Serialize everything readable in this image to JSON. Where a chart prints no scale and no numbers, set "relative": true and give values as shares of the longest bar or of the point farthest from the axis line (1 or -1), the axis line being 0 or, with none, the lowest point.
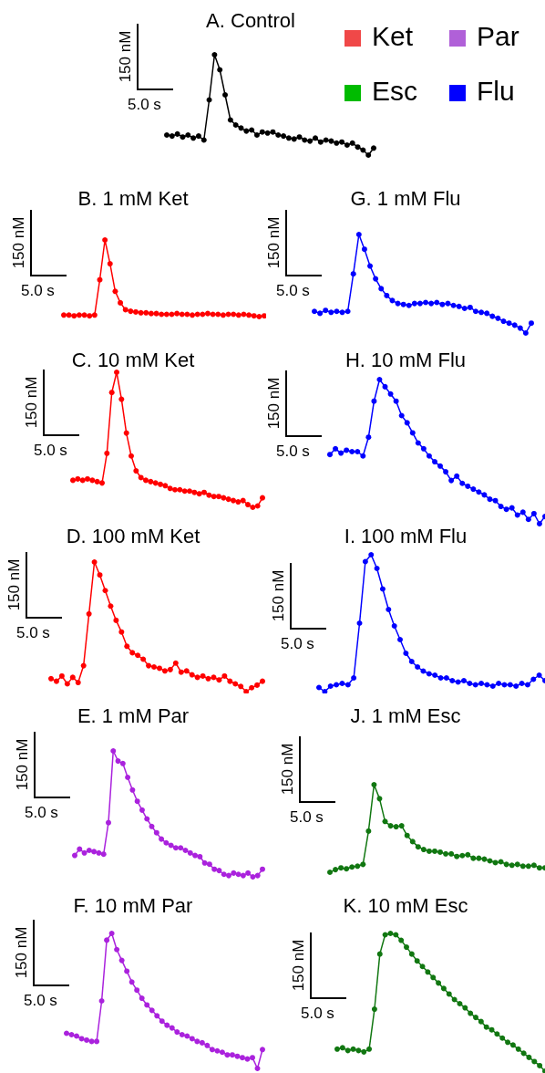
{
  "chart_data": [
    {
      "type": "line",
      "title": "A. Control",
      "relative": true,
      "marker": "circle",
      "annotations": [
        "150 nM",
        "5.0 s"
      ],
      "categories": [
        null,
        null,
        null,
        null,
        null,
        null,
        null,
        null,
        null,
        null,
        null,
        null,
        null,
        null,
        null,
        null,
        null,
        null,
        null,
        null,
        null,
        null,
        null,
        null,
        null,
        null,
        null,
        null,
        null,
        null,
        null,
        null,
        null,
        null,
        null,
        null,
        null,
        null,
        null,
        null
      ],
      "series": [
        {
          "color": "#000000",
          "values": [
            0.2,
            0.19,
            0.21,
            0.18,
            0.2,
            0.17,
            0.19,
            0.15,
            0.55,
            1.0,
            0.85,
            0.6,
            0.35,
            0.3,
            0.27,
            0.24,
            0.25,
            0.2,
            0.23,
            0.22,
            0.23,
            0.2,
            0.19,
            0.17,
            0.16,
            0.18,
            0.15,
            0.14,
            0.17,
            0.13,
            0.15,
            0.14,
            0.12,
            0.13,
            0.1,
            0.12,
            0.08,
            0.05,
            0.0,
            0.07
          ]
        }
      ]
    },
    {
      "type": "other",
      "categories": [
        "Ket",
        "Par",
        "Esc",
        "Flu"
      ],
      "colors": [
        "#f04848",
        "#b060d8",
        "#00bb00",
        "#0000ff"
      ]
    },
    {
      "type": "line",
      "title": "B. 1 mM Ket",
      "relative": true,
      "marker": "circle",
      "annotations": [
        "150 nM",
        "5.0 s"
      ],
      "categories": [
        null,
        null,
        null,
        null,
        null,
        null,
        null,
        null,
        null,
        null,
        null,
        null,
        null,
        null,
        null,
        null,
        null,
        null,
        null,
        null,
        null,
        null,
        null,
        null,
        null,
        null,
        null,
        null,
        null,
        null,
        null,
        null,
        null,
        null,
        null,
        null,
        null,
        null,
        null,
        null
      ],
      "series": [
        {
          "color": "#ff0000",
          "values": [
            0.02,
            0.02,
            0.01,
            0.02,
            0.02,
            0.01,
            0.02,
            0.48,
            1.0,
            0.69,
            0.33,
            0.18,
            0.09,
            0.07,
            0.06,
            0.05,
            0.05,
            0.04,
            0.04,
            0.03,
            0.03,
            0.03,
            0.04,
            0.03,
            0.03,
            0.02,
            0.03,
            0.03,
            0.04,
            0.03,
            0.03,
            0.02,
            0.03,
            0.03,
            0.02,
            0.03,
            0.02,
            0.01,
            0.0,
            0.01
          ]
        }
      ]
    },
    {
      "type": "line",
      "title": "G. 1 mM Flu",
      "relative": true,
      "marker": "circle",
      "annotations": [
        "150 nM",
        "5.0 s"
      ],
      "categories": [
        null,
        null,
        null,
        null,
        null,
        null,
        null,
        null,
        null,
        null,
        null,
        null,
        null,
        null,
        null,
        null,
        null,
        null,
        null,
        null,
        null,
        null,
        null,
        null,
        null,
        null,
        null,
        null,
        null,
        null,
        null,
        null,
        null,
        null,
        null,
        null,
        null,
        null,
        null,
        null
      ],
      "series": [
        {
          "color": "#0000ff",
          "values": [
            0.22,
            0.2,
            0.23,
            0.21,
            0.22,
            0.21,
            0.22,
            0.6,
            1.0,
            0.85,
            0.68,
            0.55,
            0.45,
            0.38,
            0.33,
            0.3,
            0.29,
            0.28,
            0.3,
            0.3,
            0.31,
            0.3,
            0.31,
            0.29,
            0.3,
            0.28,
            0.27,
            0.25,
            0.26,
            0.22,
            0.21,
            0.2,
            0.17,
            0.15,
            0.12,
            0.1,
            0.08,
            0.05,
            0.0,
            0.1
          ]
        }
      ]
    },
    {
      "type": "line",
      "title": "C. 10 mM Ket",
      "relative": true,
      "marker": "circle",
      "annotations": [
        "150 nM",
        "5.0 s"
      ],
      "categories": [
        null,
        null,
        null,
        null,
        null,
        null,
        null,
        null,
        null,
        null,
        null,
        null,
        null,
        null,
        null,
        null,
        null,
        null,
        null,
        null,
        null,
        null,
        null,
        null,
        null,
        null,
        null,
        null,
        null,
        null,
        null,
        null,
        null,
        null,
        null,
        null,
        null,
        null,
        null,
        null
      ],
      "series": [
        {
          "color": "#ff0000",
          "values": [
            0.2,
            0.21,
            0.2,
            0.21,
            0.2,
            0.19,
            0.18,
            0.4,
            0.85,
            1.0,
            0.8,
            0.55,
            0.38,
            0.27,
            0.22,
            0.2,
            0.19,
            0.18,
            0.17,
            0.16,
            0.14,
            0.13,
            0.13,
            0.12,
            0.12,
            0.11,
            0.1,
            0.11,
            0.09,
            0.08,
            0.08,
            0.07,
            0.06,
            0.05,
            0.04,
            0.05,
            0.02,
            0.0,
            0.01,
            0.07
          ]
        }
      ]
    },
    {
      "type": "line",
      "title": "H. 10 mM Flu",
      "relative": true,
      "marker": "circle",
      "annotations": [
        "150 nM",
        "5.0 s"
      ],
      "categories": [
        null,
        null,
        null,
        null,
        null,
        null,
        null,
        null,
        null,
        null,
        null,
        null,
        null,
        null,
        null,
        null,
        null,
        null,
        null,
        null,
        null,
        null,
        null,
        null,
        null,
        null,
        null,
        null,
        null,
        null,
        null,
        null,
        null,
        null,
        null,
        null,
        null,
        null,
        null,
        null
      ],
      "series": [
        {
          "color": "#0000ff",
          "values": [
            0.48,
            0.52,
            0.49,
            0.51,
            0.5,
            0.5,
            0.47,
            0.6,
            0.85,
            1.0,
            0.95,
            0.9,
            0.85,
            0.75,
            0.7,
            0.63,
            0.56,
            0.52,
            0.47,
            0.43,
            0.4,
            0.36,
            0.3,
            0.33,
            0.28,
            0.26,
            0.24,
            0.22,
            0.2,
            0.17,
            0.16,
            0.12,
            0.1,
            0.11,
            0.06,
            0.08,
            0.03,
            0.07,
            0.0,
            0.05
          ]
        }
      ]
    },
    {
      "type": "line",
      "title": "D. 100 mM Ket",
      "relative": true,
      "marker": "circle",
      "annotations": [
        "150 nM",
        "5.0 s"
      ],
      "categories": [
        null,
        null,
        null,
        null,
        null,
        null,
        null,
        null,
        null,
        null,
        null,
        null,
        null,
        null,
        null,
        null,
        null,
        null,
        null,
        null,
        null,
        null,
        null,
        null,
        null,
        null,
        null,
        null,
        null,
        null,
        null,
        null,
        null,
        null,
        null,
        null,
        null,
        null,
        null,
        null
      ],
      "series": [
        {
          "color": "#ff0000",
          "values": [
            0.1,
            0.08,
            0.12,
            0.06,
            0.11,
            0.07,
            0.2,
            0.6,
            1.0,
            0.9,
            0.78,
            0.66,
            0.55,
            0.46,
            0.35,
            0.3,
            0.28,
            0.25,
            0.2,
            0.19,
            0.18,
            0.16,
            0.17,
            0.22,
            0.15,
            0.16,
            0.13,
            0.11,
            0.12,
            0.1,
            0.11,
            0.09,
            0.12,
            0.08,
            0.06,
            0.04,
            0.0,
            0.03,
            0.05,
            0.08
          ]
        }
      ]
    },
    {
      "type": "line",
      "title": "I. 100 mM Flu",
      "relative": true,
      "marker": "circle",
      "annotations": [
        "150 nM",
        "5.0 s"
      ],
      "categories": [
        null,
        null,
        null,
        null,
        null,
        null,
        null,
        null,
        null,
        null,
        null,
        null,
        null,
        null,
        null,
        null,
        null,
        null,
        null,
        null,
        null,
        null,
        null,
        null,
        null,
        null,
        null,
        null,
        null,
        null,
        null,
        null,
        null,
        null,
        null,
        null,
        null,
        null,
        null,
        null
      ],
      "series": [
        {
          "color": "#0000ff",
          "values": [
            0.03,
            0.0,
            0.04,
            0.05,
            0.06,
            0.05,
            0.1,
            0.5,
            0.95,
            1.0,
            0.9,
            0.75,
            0.6,
            0.48,
            0.38,
            0.28,
            0.22,
            0.18,
            0.15,
            0.13,
            0.12,
            0.1,
            0.1,
            0.08,
            0.07,
            0.08,
            0.06,
            0.05,
            0.06,
            0.05,
            0.04,
            0.06,
            0.05,
            0.05,
            0.04,
            0.06,
            0.05,
            0.09,
            0.12,
            0.08
          ]
        }
      ]
    },
    {
      "type": "line",
      "title": "E. 1 mM Par",
      "relative": true,
      "marker": "circle",
      "annotations": [
        "150 nM",
        "5.0 s"
      ],
      "categories": [
        null,
        null,
        null,
        null,
        null,
        null,
        null,
        null,
        null,
        null,
        null,
        null,
        null,
        null,
        null,
        null,
        null,
        null,
        null,
        null,
        null,
        null,
        null,
        null,
        null,
        null,
        null,
        null,
        null,
        null,
        null,
        null,
        null,
        null,
        null,
        null,
        null,
        null,
        null,
        null
      ],
      "series": [
        {
          "color": "#aa22dd",
          "values": [
            0.17,
            0.22,
            0.19,
            0.21,
            0.2,
            0.19,
            0.18,
            0.43,
            1.0,
            0.92,
            0.9,
            0.79,
            0.69,
            0.6,
            0.53,
            0.46,
            0.4,
            0.35,
            0.3,
            0.27,
            0.25,
            0.23,
            0.23,
            0.21,
            0.19,
            0.17,
            0.16,
            0.11,
            0.1,
            0.06,
            0.05,
            0.02,
            0.01,
            0.03,
            0.02,
            0.01,
            0.03,
            0.0,
            0.01,
            0.06
          ]
        }
      ]
    },
    {
      "type": "line",
      "title": "J. 1 mM Esc",
      "relative": true,
      "marker": "circle",
      "annotations": [
        "150 nM",
        "5.0 s"
      ],
      "categories": [
        null,
        null,
        null,
        null,
        null,
        null,
        null,
        null,
        null,
        null,
        null,
        null,
        null,
        null,
        null,
        null,
        null,
        null,
        null,
        null,
        null,
        null,
        null,
        null,
        null,
        null,
        null,
        null,
        null,
        null,
        null,
        null,
        null,
        null,
        null,
        null,
        null,
        null,
        null,
        null
      ],
      "series": [
        {
          "color": "#117711",
          "values": [
            0.0,
            0.03,
            0.05,
            0.04,
            0.06,
            0.07,
            0.09,
            0.47,
            1.0,
            0.84,
            0.58,
            0.53,
            0.52,
            0.53,
            0.42,
            0.35,
            0.29,
            0.26,
            0.24,
            0.24,
            0.23,
            0.21,
            0.21,
            0.18,
            0.19,
            0.2,
            0.16,
            0.16,
            0.15,
            0.13,
            0.11,
            0.12,
            0.09,
            0.08,
            0.09,
            0.07,
            0.07,
            0.08,
            0.05,
            0.05
          ]
        }
      ]
    },
    {
      "type": "line",
      "title": "F. 10 mM Par",
      "relative": true,
      "marker": "circle",
      "annotations": [
        "150 nM",
        "5.0 s"
      ],
      "categories": [
        null,
        null,
        null,
        null,
        null,
        null,
        null,
        null,
        null,
        null,
        null,
        null,
        null,
        null,
        null,
        null,
        null,
        null,
        null,
        null,
        null,
        null,
        null,
        null,
        null,
        null,
        null,
        null,
        null,
        null,
        null,
        null,
        null,
        null,
        null,
        null,
        null,
        null,
        null,
        null
      ],
      "series": [
        {
          "color": "#aa22dd",
          "values": [
            0.26,
            0.25,
            0.24,
            0.22,
            0.21,
            0.2,
            0.2,
            0.5,
            0.95,
            1.0,
            0.88,
            0.8,
            0.72,
            0.64,
            0.58,
            0.52,
            0.47,
            0.43,
            0.39,
            0.35,
            0.32,
            0.3,
            0.27,
            0.25,
            0.24,
            0.22,
            0.2,
            0.19,
            0.17,
            0.14,
            0.13,
            0.12,
            0.1,
            0.1,
            0.09,
            0.08,
            0.07,
            0.08,
            0.0,
            0.14
          ]
        }
      ]
    },
    {
      "type": "line",
      "title": "K. 10 mM Esc",
      "relative": true,
      "marker": "circle",
      "annotations": [
        "150 nM",
        "5.0 s"
      ],
      "categories": [
        null,
        null,
        null,
        null,
        null,
        null,
        null,
        null,
        null,
        null,
        null,
        null,
        null,
        null,
        null,
        null,
        null,
        null,
        null,
        null,
        null,
        null,
        null,
        null,
        null,
        null,
        null,
        null,
        null,
        null,
        null,
        null,
        null,
        null,
        null,
        null,
        null,
        null,
        null,
        null
      ],
      "series": [
        {
          "color": "#117711",
          "values": [
            0.16,
            0.17,
            0.15,
            0.16,
            0.15,
            0.14,
            0.16,
            0.45,
            0.85,
            0.99,
            1.0,
            0.99,
            0.95,
            0.9,
            0.85,
            0.8,
            0.76,
            0.72,
            0.68,
            0.64,
            0.6,
            0.56,
            0.52,
            0.49,
            0.46,
            0.42,
            0.39,
            0.36,
            0.32,
            0.3,
            0.27,
            0.24,
            0.21,
            0.19,
            0.16,
            0.13,
            0.1,
            0.07,
            0.04,
            0.0
          ]
        }
      ]
    }
  ]
}
